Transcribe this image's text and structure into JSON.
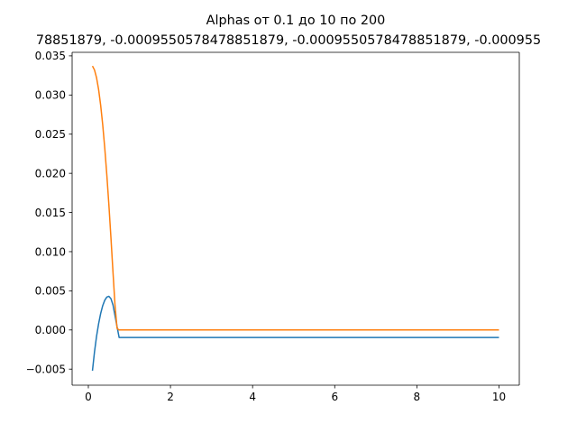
{
  "chart_data": {
    "type": "line",
    "title": "Alphas от 0.1 до 10 по 200",
    "subtitle": "78851879, -0.0009550578478851879, -0.0009550578478851879, -0.000955",
    "xlabel": "",
    "ylabel": "",
    "xlim": [
      -0.395,
      10.495
    ],
    "ylim": [
      -0.00705,
      0.03545
    ],
    "x_ticks": [
      0,
      2,
      4,
      6,
      8,
      10
    ],
    "x_tick_labels": [
      "0",
      "2",
      "4",
      "6",
      "8",
      "10"
    ],
    "y_ticks": [
      -0.005,
      0.0,
      0.005,
      0.01,
      0.015,
      0.02,
      0.025,
      0.03,
      0.035
    ],
    "y_tick_labels": [
      "−0.005",
      "0.000",
      "0.005",
      "0.010",
      "0.015",
      "0.020",
      "0.025",
      "0.030",
      "0.035"
    ],
    "grid": false,
    "legend": "none",
    "series": [
      {
        "color": "#1f77b4",
        "x": [
          0.1,
          0.15,
          0.2,
          0.25,
          0.3,
          0.35,
          0.4,
          0.45,
          0.5,
          0.55,
          0.6,
          0.65,
          0.7,
          0.75,
          1.0,
          2.0,
          4.0,
          6.0,
          8.0,
          10.0
        ],
        "y": [
          -0.0052,
          -0.0028,
          -0.0008,
          0.0008,
          0.0021,
          0.0031,
          0.0038,
          0.0042,
          0.0043,
          0.004,
          0.0032,
          0.0018,
          0.0004,
          -0.00096,
          -0.00096,
          -0.00096,
          -0.00096,
          -0.00096,
          -0.00096,
          -0.00096
        ]
      },
      {
        "color": "#ff7f0e",
        "x": [
          0.1,
          0.15,
          0.2,
          0.25,
          0.3,
          0.35,
          0.4,
          0.45,
          0.5,
          0.55,
          0.6,
          0.65,
          0.7,
          0.75,
          1.0,
          2.0,
          4.0,
          6.0,
          8.0,
          10.0
        ],
        "y": [
          0.0337,
          0.0332,
          0.0322,
          0.0307,
          0.0287,
          0.0262,
          0.0232,
          0.0198,
          0.016,
          0.0118,
          0.0074,
          0.0031,
          0.0002,
          0.0,
          0.0,
          0.0,
          0.0,
          0.0,
          0.0,
          0.0
        ]
      }
    ]
  }
}
